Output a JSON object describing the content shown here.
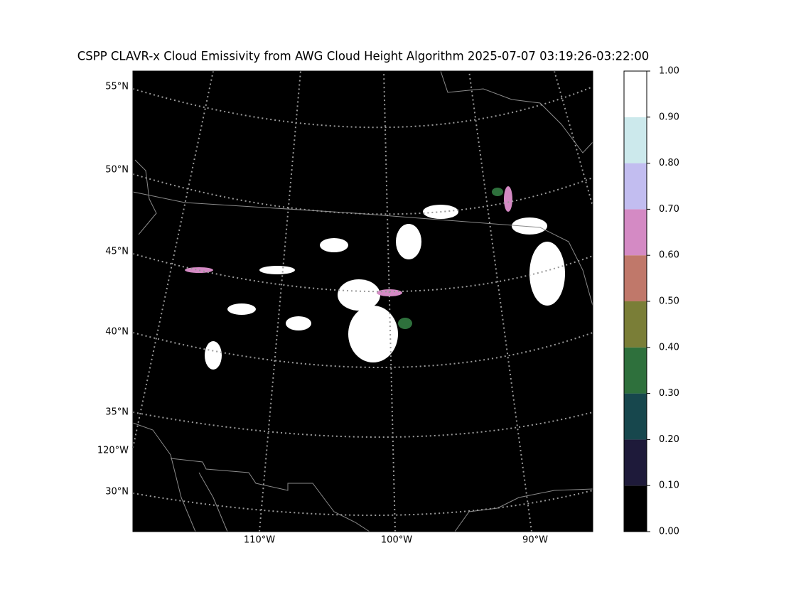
{
  "title": "CSPP CLAVR-x Cloud Emissivity from AWG Cloud Height Algorithm 2025-07-07 03:19:26-03:22:00",
  "map": {
    "left_labels": [
      "55°N",
      "50°N",
      "45°N",
      "40°N",
      "35°N",
      "120°W",
      "30°N"
    ],
    "bottom_labels": [
      "110°W",
      "100°W",
      "90°W"
    ]
  },
  "colorbar": {
    "ticks": [
      {
        "value": 0,
        "label": "0.00"
      },
      {
        "value": 0.1,
        "label": "0.10"
      },
      {
        "value": 0.2,
        "label": "0.20"
      },
      {
        "value": 0.3,
        "label": "0.30"
      },
      {
        "value": 0.4,
        "label": "0.40"
      },
      {
        "value": 0.5,
        "label": "0.50"
      },
      {
        "value": 0.6,
        "label": "0.60"
      },
      {
        "value": 0.7,
        "label": "0.70"
      },
      {
        "value": 0.8,
        "label": "0.80"
      },
      {
        "value": 0.9,
        "label": "0.90"
      },
      {
        "value": 1,
        "label": "1.00"
      }
    ],
    "lim": [
      0,
      1
    ],
    "colors": [
      "#000000",
      "#1e1a3a",
      "#17474d",
      "#2e703c",
      "#7a7e37",
      "#c0786a",
      "#d48ac4",
      "#c2bdf0",
      "#cce9ec",
      "#ffffff"
    ]
  }
}
